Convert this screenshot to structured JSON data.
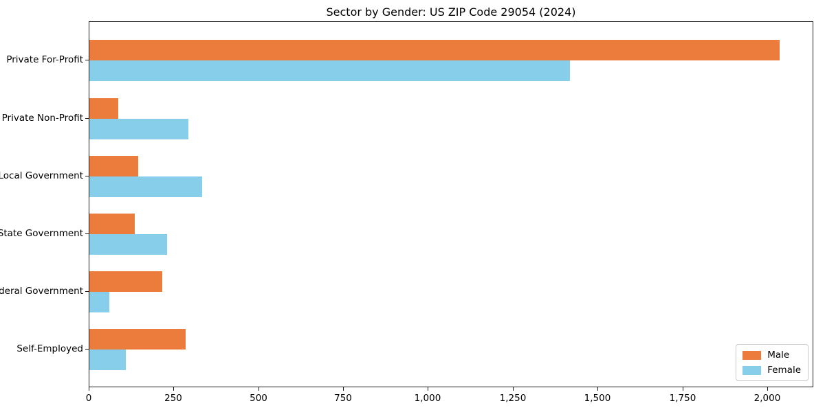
{
  "figure": {
    "title": "Sector by Gender: US ZIP Code 29054 (2024)"
  },
  "chart_data": {
    "type": "bar",
    "orientation": "horizontal",
    "title": "Sector by Gender: US ZIP Code 29054 (2024)",
    "categories": [
      "Private For-Profit",
      "Private Non-Profit",
      "Local Government",
      "State Government",
      "Federal Government",
      "Self-Employed"
    ],
    "series": [
      {
        "name": "Male",
        "color": "#ec7c3c",
        "values": [
          2034,
          85,
          144,
          134,
          215,
          283
        ]
      },
      {
        "name": "Female",
        "color": "#87ceeb",
        "values": [
          1417,
          291,
          332,
          229,
          59,
          107
        ]
      }
    ],
    "xlabel": "",
    "ylabel": "",
    "xlim": [
      0,
      2132
    ],
    "xticks": [
      0,
      250,
      500,
      750,
      1000,
      1250,
      1500,
      1750,
      2000
    ],
    "xtick_labels": [
      "0",
      "250",
      "500",
      "750",
      "1,000",
      "1,250",
      "1,500",
      "1,750",
      "2,000"
    ],
    "grid": false,
    "legend_position": "lower right"
  },
  "legend": {
    "items": [
      {
        "label": "Male",
        "color": "#ec7c3c"
      },
      {
        "label": "Female",
        "color": "#87ceeb"
      }
    ]
  }
}
